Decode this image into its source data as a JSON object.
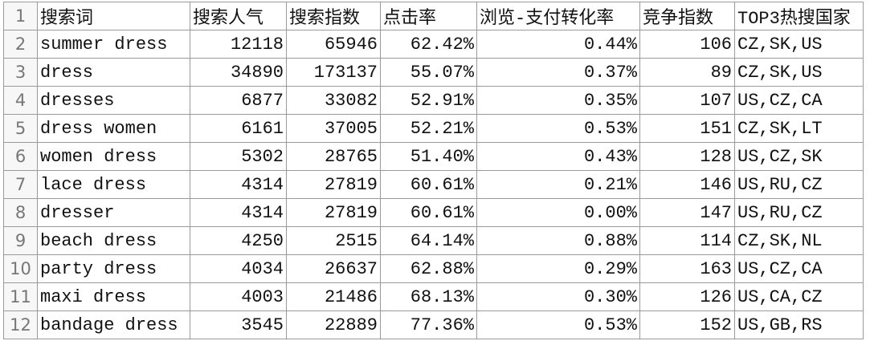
{
  "row_numbers": [
    "1",
    "2",
    "3",
    "4",
    "5",
    "6",
    "7",
    "8",
    "9",
    "10",
    "11",
    "12"
  ],
  "table": {
    "header": [
      "搜索词",
      "搜索人气",
      "搜索指数",
      "点击率",
      "浏览-支付转化率",
      "竞争指数",
      "TOP3热搜国家"
    ],
    "rows": [
      [
        "summer dress",
        "12118",
        "65946",
        "62.42%",
        "0.44%",
        "106",
        "CZ,SK,US"
      ],
      [
        "dress",
        "34890",
        "173137",
        "55.07%",
        "0.37%",
        "89",
        "CZ,SK,US"
      ],
      [
        "dresses",
        "6877",
        "33082",
        "52.91%",
        "0.35%",
        "107",
        "US,CZ,CA"
      ],
      [
        "dress women",
        "6161",
        "37005",
        "52.21%",
        "0.53%",
        "151",
        "CZ,SK,LT"
      ],
      [
        "women dress",
        "5302",
        "28765",
        "51.40%",
        "0.43%",
        "128",
        "US,CZ,SK"
      ],
      [
        "lace dress",
        "4314",
        "27819",
        "60.61%",
        "0.21%",
        "146",
        "US,RU,CZ"
      ],
      [
        "dresser",
        "4314",
        "27819",
        "60.61%",
        "0.00%",
        "147",
        "US,RU,CZ"
      ],
      [
        "beach dress",
        "4250",
        "2515",
        "64.14%",
        "0.88%",
        "114",
        "CZ,SK,NL"
      ],
      [
        "party dress",
        "4034",
        "26637",
        "62.88%",
        "0.29%",
        "163",
        "US,CZ,CA"
      ],
      [
        "maxi dress",
        "4003",
        "21486",
        "68.13%",
        "0.30%",
        "126",
        "US,CA,CZ"
      ],
      [
        "bandage dress",
        "3545",
        "22889",
        "77.36%",
        "0.53%",
        "152",
        "US,GB,RS"
      ]
    ]
  }
}
